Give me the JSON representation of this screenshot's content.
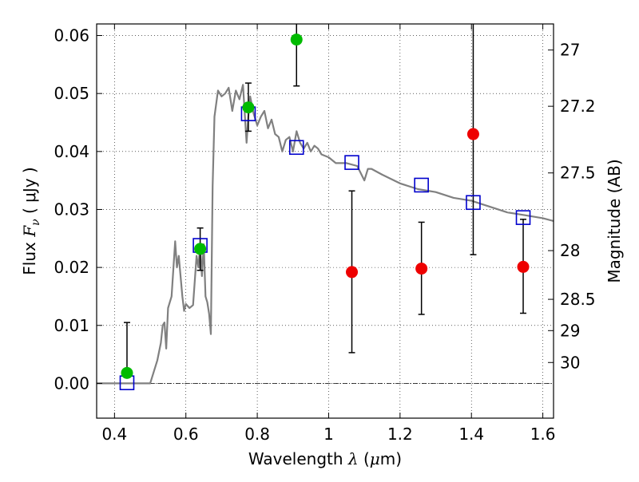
{
  "chart_data": {
    "type": "scatter",
    "xlabel": {
      "prefix": "Wavelength",
      "symbol": "λ",
      "unit_open": "(",
      "unit_mu": "μ",
      "unit_rest": "m)"
    },
    "ylabel": {
      "prefix": "Flux",
      "symbol": "F",
      "subscript": "ν",
      "unit": "( μJy )"
    },
    "y2label": "Magnitude (AB)",
    "xlim": [
      0.35,
      1.63
    ],
    "ylim": [
      -0.006,
      0.062
    ],
    "grid": true,
    "x_ticks": [
      0.4,
      0.6,
      0.8,
      1.0,
      1.2,
      1.4,
      1.6
    ],
    "x_tick_labels": [
      "0.4",
      "0.6",
      "0.8",
      "1",
      "1.2",
      "1.4",
      "1.6"
    ],
    "y_ticks": [
      0.0,
      0.01,
      0.02,
      0.03,
      0.04,
      0.05,
      0.06
    ],
    "y_tick_labels": [
      "0.00",
      "0.01",
      "0.02",
      "0.03",
      "0.04",
      "0.05",
      "0.06"
    ],
    "mag_ticks": [
      {
        "label": "27",
        "flux": 0.0575
      },
      {
        "label": "27.2",
        "flux": 0.0478
      },
      {
        "label": "27.5",
        "flux": 0.0363
      },
      {
        "label": "28",
        "flux": 0.0229
      },
      {
        "label": "28.5",
        "flux": 0.0145
      },
      {
        "label": "29",
        "flux": 0.0091
      },
      {
        "label": "30",
        "flux": 0.0036
      }
    ],
    "colors": {
      "model": "#808080",
      "model_points": "#0000cc",
      "detections": "#00bb00",
      "upper_limits": "#ee0000",
      "errorbar": "#000000",
      "zero_line": "#000000"
    },
    "series": [
      {
        "type": "line",
        "color": "#808080",
        "x": [
          0.35,
          0.49,
          0.5,
          0.52,
          0.53,
          0.535,
          0.54,
          0.545,
          0.55,
          0.56,
          0.57,
          0.575,
          0.58,
          0.59,
          0.595,
          0.6,
          0.61,
          0.62,
          0.63,
          0.635,
          0.64,
          0.645,
          0.65,
          0.655,
          0.66,
          0.665,
          0.67,
          0.675,
          0.68,
          0.69,
          0.7,
          0.71,
          0.72,
          0.73,
          0.74,
          0.75,
          0.76,
          0.77,
          0.775,
          0.78,
          0.79,
          0.8,
          0.81,
          0.82,
          0.83,
          0.84,
          0.85,
          0.86,
          0.87,
          0.88,
          0.89,
          0.9,
          0.91,
          0.92,
          0.93,
          0.94,
          0.95,
          0.96,
          0.97,
          0.98,
          1.0,
          1.02,
          1.05,
          1.08,
          1.1,
          1.11,
          1.12,
          1.15,
          1.2,
          1.25,
          1.3,
          1.35,
          1.4,
          1.45,
          1.5,
          1.55,
          1.6,
          1.63
        ],
        "y": [
          0.0,
          0.0,
          0.0,
          0.004,
          0.007,
          0.01,
          0.0105,
          0.006,
          0.013,
          0.015,
          0.0245,
          0.02,
          0.022,
          0.015,
          0.0125,
          0.0137,
          0.013,
          0.0135,
          0.022,
          0.02,
          0.024,
          0.0185,
          0.024,
          0.015,
          0.014,
          0.012,
          0.0085,
          0.034,
          0.046,
          0.0505,
          0.0495,
          0.05,
          0.051,
          0.047,
          0.0505,
          0.049,
          0.0515,
          0.0415,
          0.046,
          0.0495,
          0.0465,
          0.0445,
          0.046,
          0.047,
          0.044,
          0.0455,
          0.043,
          0.0425,
          0.04,
          0.042,
          0.0425,
          0.04,
          0.0435,
          0.0415,
          0.0405,
          0.0415,
          0.04,
          0.041,
          0.0405,
          0.0395,
          0.039,
          0.038,
          0.038,
          0.0375,
          0.035,
          0.037,
          0.037,
          0.036,
          0.0345,
          0.0335,
          0.033,
          0.032,
          0.0315,
          0.0305,
          0.0295,
          0.029,
          0.0285,
          0.028
        ]
      },
      {
        "type": "scatter",
        "marker": "open-square",
        "color": "#0000cc",
        "x": [
          0.435,
          0.64,
          0.775,
          0.91,
          1.065,
          1.26,
          1.405,
          1.545
        ],
        "y": [
          0.0001,
          0.0238,
          0.0465,
          0.0407,
          0.0381,
          0.0342,
          0.0312,
          0.0286
        ]
      },
      {
        "type": "scatter",
        "marker": "filled-circle",
        "color": "#00bb00",
        "x": [
          0.435,
          0.64,
          0.775,
          0.91
        ],
        "y": [
          0.0018,
          0.0232,
          0.0476,
          0.0593
        ],
        "yerr_low": [
          0.0013,
          0.0195,
          0.0435,
          0.0513
        ],
        "yerr_high": [
          0.0105,
          0.0268,
          0.0518,
          0.0625
        ]
      },
      {
        "type": "scatter",
        "marker": "filled-circle",
        "color": "#ee0000",
        "x": [
          1.065,
          1.26,
          1.405,
          1.545
        ],
        "y": [
          0.0192,
          0.0198,
          0.043,
          0.0201
        ],
        "yerr_low": [
          0.0053,
          0.0119,
          0.0222,
          0.0121
        ],
        "yerr_high": [
          0.0332,
          0.0278,
          0.0625,
          0.0283
        ]
      }
    ]
  }
}
